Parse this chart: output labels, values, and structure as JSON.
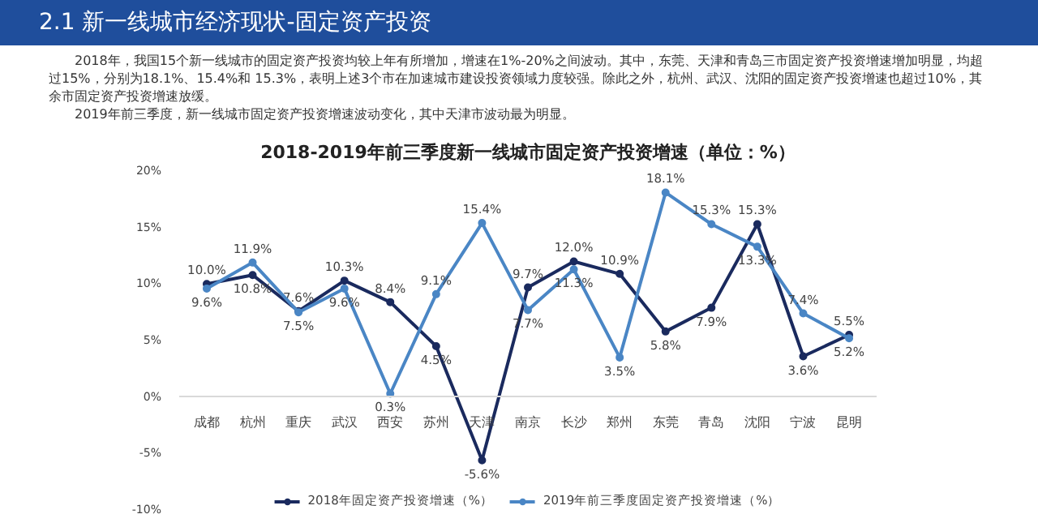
{
  "chart_data": {
    "type": "line",
    "title": "2.1  新一线城市经济现状-固定资产投资",
    "subtitle": "2018-2019年前三季度新一线城市固定资产投资增速（单位：%）",
    "annotations": [
      "2018年，我国15个新一线城市的固定资产投资均较上年有所增加，增速在1%-20%之间波动。其中，东莞、天津和青岛三市固定资产投资增速增加明显，均超过15%，分别为18.1%、15.4%和 15.3%，表明上述3个市在加速城市建设投资领域力度较强。除此之外，杭州、武汉、沈阳的固定资产投资增速也超过10%，其余市固定资产投资增速放缓。",
      "2019年前三季度，新一线城市固定资产投资增速波动变化，其中天津市波动最为明显。"
    ],
    "categories": [
      "成都",
      "杭州",
      "重庆",
      "武汉",
      "西安",
      "苏州",
      "天津",
      "南京",
      "长沙",
      "郑州",
      "东莞",
      "青岛",
      "沈阳",
      "宁波",
      "昆明"
    ],
    "series": [
      {
        "name": "2018年固定资产投资增速（%）",
        "color": "#1a2a5e",
        "values": [
          10.0,
          10.8,
          7.6,
          10.3,
          8.4,
          4.5,
          -5.6,
          9.7,
          12.0,
          10.9,
          5.8,
          7.9,
          15.3,
          3.6,
          5.5
        ],
        "value_labels": [
          "10.0%",
          "10.8%",
          "7.6%",
          "10.3%",
          "8.4%",
          "4.5%",
          "-5.6%",
          "9.7%",
          "12.0%",
          "10.9%",
          "5.8%",
          "7.9%",
          "15.3%",
          "3.6%",
          "5.5%"
        ]
      },
      {
        "name": "2019年前三季度固定资产投资增速（%）",
        "color": "#4a86c5",
        "values": [
          9.6,
          11.9,
          7.5,
          9.6,
          0.3,
          9.1,
          15.4,
          7.7,
          11.3,
          3.5,
          18.1,
          15.3,
          13.3,
          7.4,
          5.2
        ],
        "value_labels": [
          "9.6%",
          "11.9%",
          "7.5%",
          "9.6%",
          "0.3%",
          "9.1%",
          "15.4%",
          "7.7%",
          "11.3%",
          "3.5%",
          "18.1%",
          "15.3%",
          "13.3%",
          "7.4%",
          "5.2%"
        ]
      }
    ],
    "ylim": [
      -10,
      20
    ],
    "yticks": [
      {
        "value": -10,
        "label": "-10%"
      },
      {
        "value": -5,
        "label": "-5%"
      },
      {
        "value": 0,
        "label": "0%"
      },
      {
        "value": 5,
        "label": "5%"
      },
      {
        "value": 10,
        "label": "10%"
      },
      {
        "value": 15,
        "label": "15%"
      },
      {
        "value": 20,
        "label": "20%"
      }
    ],
    "grid": false,
    "legend": "bottom",
    "marker": "circle",
    "line_style": "solid"
  }
}
